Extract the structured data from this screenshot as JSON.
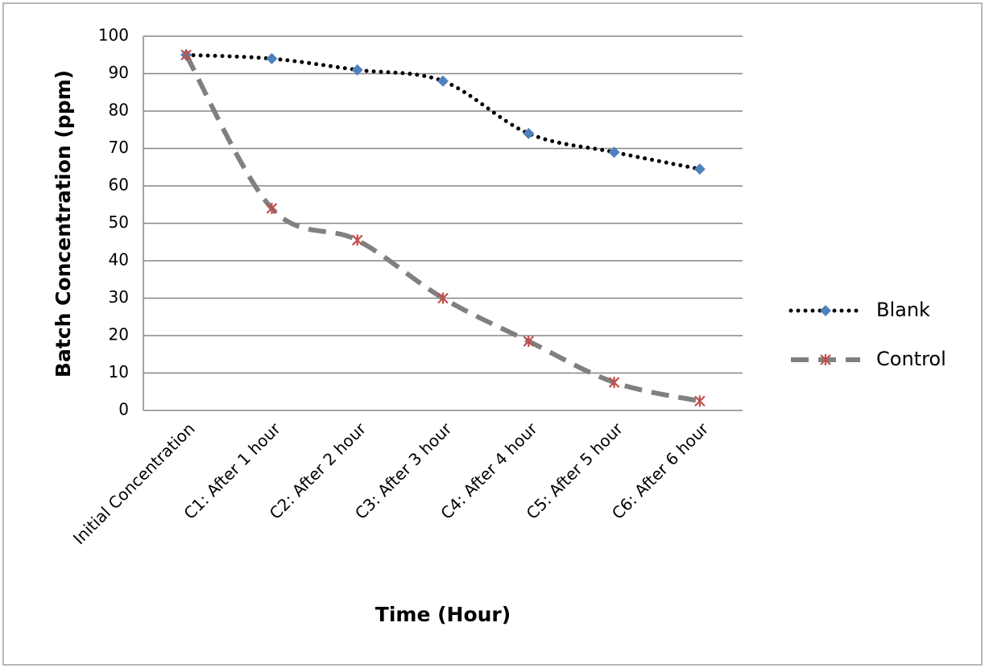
{
  "chart_data": {
    "type": "line",
    "x_label": "Time (Hour)",
    "y_label": "Batch Concentration (ppm)",
    "categories": [
      "Initial Concentration",
      "C1: After 1 hour",
      "C2: After 2 hour",
      "C3: After 3 hour",
      "C4: After 4 hour",
      "C5: After 5 hour",
      "C6: After 6 hour"
    ],
    "series": [
      {
        "name": "Blank",
        "color": "#4f81bd",
        "line_color": "#000000",
        "values": [
          95,
          94,
          91,
          88,
          74,
          69,
          64.5
        ]
      },
      {
        "name": "Control",
        "color": "#c0504d",
        "line_color": "#808080",
        "values": [
          95,
          54,
          45.5,
          30,
          18.5,
          7.5,
          2.5
        ]
      }
    ],
    "ylim": [
      0,
      100
    ],
    "yticks": [
      0,
      10,
      20,
      30,
      40,
      50,
      60,
      70,
      80,
      90,
      100
    ],
    "grid": true,
    "legend": "right"
  }
}
